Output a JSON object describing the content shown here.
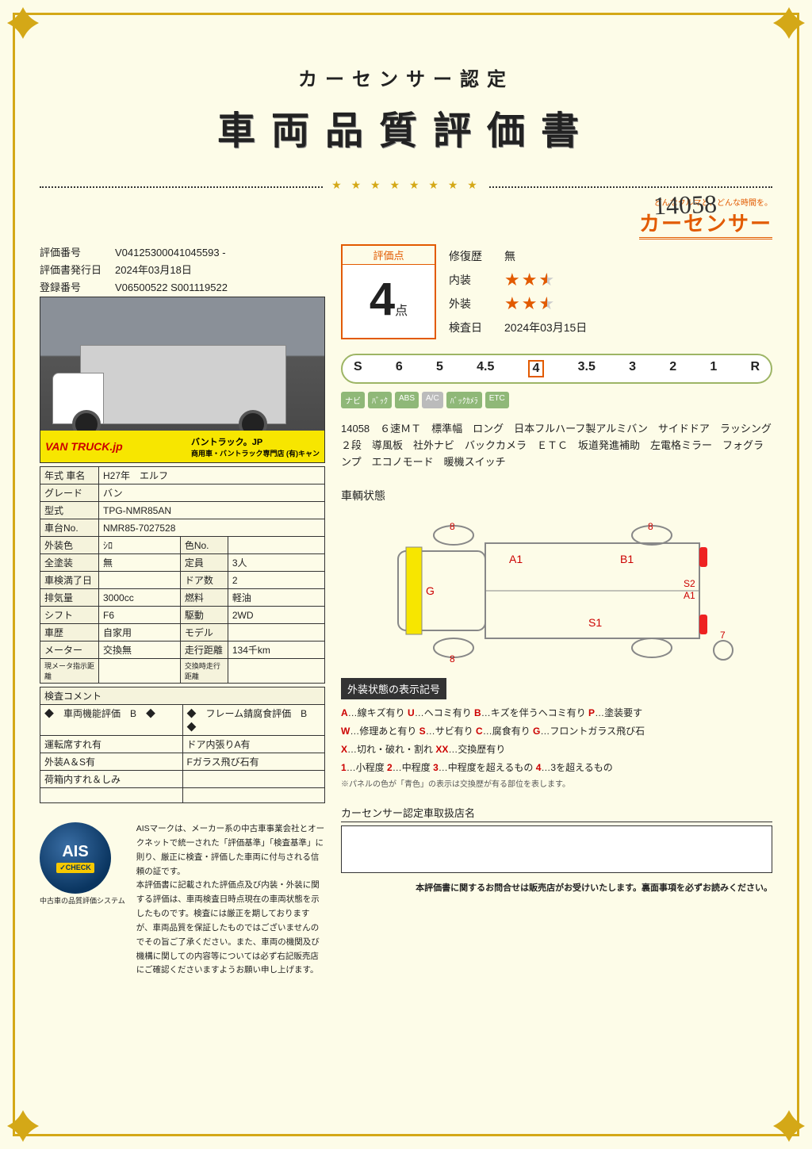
{
  "header": {
    "supertitle": "カーセンサー認定",
    "title": "車両品質評価書",
    "handwritten": "14058"
  },
  "brand": {
    "tagline": "どんなクルマと、どんな時間を。",
    "name": "カーセンサー"
  },
  "meta": {
    "eval_no_label": "評価番号",
    "eval_no": "V04125300041045593 -",
    "issue_label": "評価書発行日",
    "issue": "2024年03月18日",
    "reg_label": "登録番号",
    "reg": "V06500522 S001119522"
  },
  "photo_banner": {
    "logo": "VAN TRUCK.jp",
    "sub": "バントラック.jp",
    "text": "バントラック。JP",
    "text2": "商用車・バントラック専門店  (有)キャン"
  },
  "spec": {
    "year_label": "年式 車名",
    "year": "H27年　エルフ",
    "grade_label": "グレード",
    "grade": "バン",
    "model_label": "型式",
    "model": "TPG-NMR85AN",
    "chassis_label": "車台No.",
    "chassis": "NMR85-7027528",
    "extcolor_label": "外装色",
    "extcolor": "ｼﾛ",
    "colorno_label": "色No.",
    "colorno": "",
    "paint_label": "全塗装",
    "paint": "無",
    "capacity_label": "定員",
    "capacity": "3人",
    "shaken_label": "車検満了日",
    "shaken": "",
    "doors_label": "ドア数",
    "doors": "2",
    "disp_label": "排気量",
    "disp": "3000cc",
    "fuel_label": "燃料",
    "fuel": "軽油",
    "shift_label": "シフト",
    "shift": "F6",
    "drive_label": "駆動",
    "drive": "2WD",
    "hist_label": "車歴",
    "hist": "自家用",
    "modelg_label": "モデル",
    "modelg": "",
    "meter_label": "メーター",
    "meter": "交換無",
    "mileage_label": "走行距離",
    "mileage": "134千km",
    "curmeter_label": "現メータ指示距離",
    "curmeter": "",
    "exmileage_label": "交換時走行距離",
    "exmileage": ""
  },
  "comment": {
    "header": "検査コメント",
    "func_label": "◆　車両機能評価　B　◆",
    "frame_label": "◆　フレーム錆腐食評価　B　◆",
    "r1a": "運転席すれ有",
    "r1b": "ドア内張りA有",
    "r2a": "外装A＆S有",
    "r2b": "Fガラス飛び石有",
    "r3a": "荷箱内すれ＆しみ",
    "r3b": ""
  },
  "score": {
    "label": "評価点",
    "value": "4",
    "unit": "点",
    "repair_label": "修復歴",
    "repair": "無",
    "interior_label": "内装",
    "interior_stars": 2.5,
    "exterior_label": "外装",
    "exterior_stars": 2.5,
    "inspect_label": "検査日",
    "inspect": "2024年03月15日"
  },
  "scale": [
    "S",
    "6",
    "5",
    "4.5",
    "4",
    "3.5",
    "3",
    "2",
    "1",
    "R"
  ],
  "scale_selected": "4",
  "badges": [
    "ナビ",
    "ﾊﾞｯｸ",
    "ABS",
    "A/C",
    "ﾊﾞｯｸｶﾒﾗ",
    "ETC"
  ],
  "desc_id": "14058",
  "desc": "６速ＭＴ　標準幅　ロング　日本フルハーフ製アルミバン　サイドドア　ラッシング２段　導風板　社外ナビ　バックカメラ　ＥＴＣ　坂道発進補助　左電格ミラー　フォグランプ　エコノモード　暖機スイッチ",
  "diagram": {
    "title": "車輌状態",
    "marks": {
      "a1": "A1",
      "b1": "B1",
      "s1": "S1",
      "s2": "S2",
      "a1b": "A1",
      "g": "G",
      "n8a": "8",
      "n8b": "8",
      "n8c": "8",
      "n7": "7"
    }
  },
  "legend": {
    "header": "外装状態の表示記号",
    "line1": "A…線キズ有り U…ヘコミ有り B…キズを伴うヘコミ有り P…塗装要す",
    "line2": "W…修理あと有り S…サビ有り C…腐食有り G…フロントガラス飛び石",
    "line3": "X…切れ・破れ・割れ XX…交換歴有り",
    "line4": "1…小程度 2…中程度 3…中程度を超えるもの 4…3を超えるもの",
    "note": "※パネルの色が「青色」の表示は交換歴が有る部位を表します。"
  },
  "dealer": {
    "header": "カーセンサー認定車取扱店名"
  },
  "ais": {
    "badge": "AIS",
    "check": "✓CHECK",
    "caption": "中古車の品質評価システム",
    "text": "AISマークは、メーカー系の中古車事業会社とオークネットで統一された「評価基準」「検査基準」に則り、厳正に検査・評価した車両に付与される信頼の証です。\n本評価書に記載された評価点及び内装・外装に関する評価は、車両検査日時点現在の車両状態を示したものです。検査には厳正を期しておりますが、車両品質を保証したものではございませんのでその旨ご了承ください。また、車両の機関及び機構に関しての内容等については必ず右記販売店にご確認くださいますようお願い申し上げます。"
  },
  "bottom_note": "本評価書に関するお問合せは販売店がお受けいたします。裏面事項を必ずお読みください。",
  "colors": {
    "accent": "#e25a00",
    "gold": "#d4a817"
  }
}
